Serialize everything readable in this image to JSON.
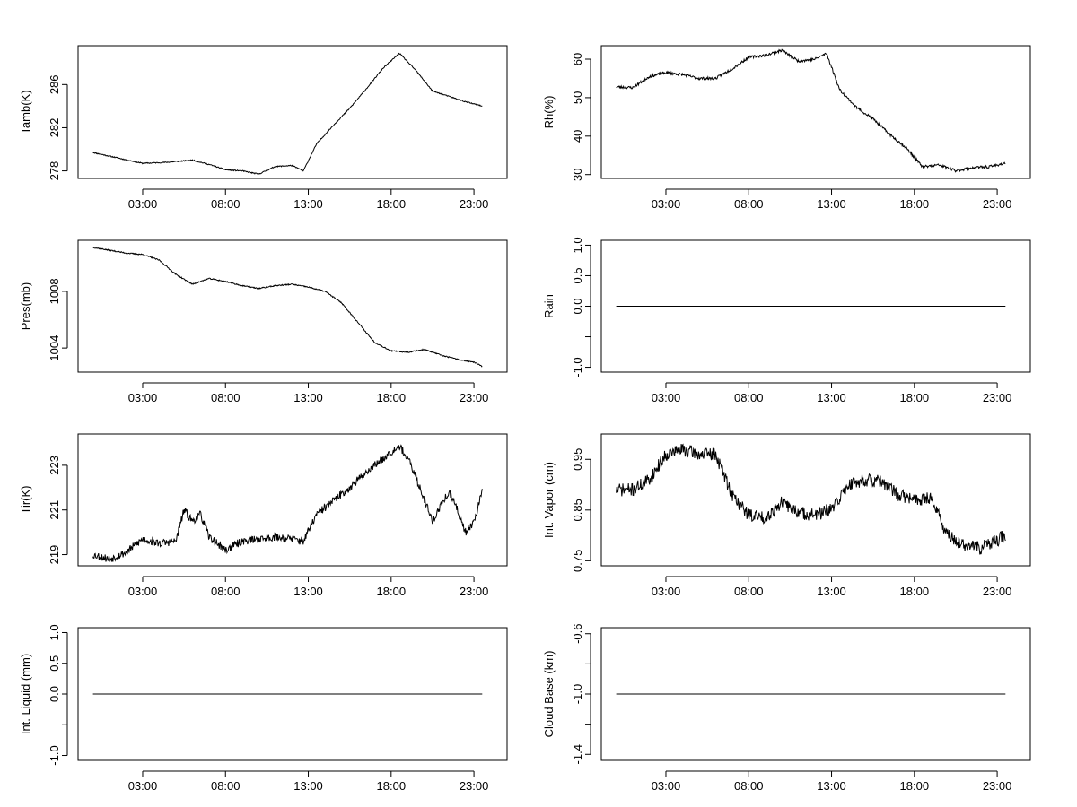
{
  "chart_data": [
    {
      "type": "line",
      "ylabel": "Tamb(K)",
      "xticks": [
        "03:00",
        "08:00",
        "13:00",
        "18:00",
        "23:00"
      ],
      "xtick_hours": [
        3,
        8,
        13,
        18,
        23
      ],
      "xlim": [
        -0.9,
        25
      ],
      "yticks": [
        278,
        282,
        286
      ],
      "ylim": [
        277.3,
        289.6
      ],
      "noise": 0.05,
      "seed": 11,
      "series": [
        {
          "name": "Tamb",
          "x": [
            0,
            1.5,
            3,
            4.5,
            6,
            7,
            8,
            9,
            10,
            11,
            12,
            12.7,
            13.5,
            14.5,
            15.5,
            16.5,
            17.5,
            18.5,
            19.5,
            20.5,
            21.5,
            22.5,
            23.5
          ],
          "y": [
            279.7,
            279.2,
            278.7,
            278.8,
            279.0,
            278.6,
            278.1,
            278.0,
            277.7,
            278.4,
            278.5,
            278.0,
            280.5,
            282.2,
            283.8,
            285.6,
            287.5,
            288.9,
            287.3,
            285.4,
            284.9,
            284.4,
            284.0
          ]
        }
      ]
    },
    {
      "type": "line",
      "ylabel": "Rh(%)",
      "xticks": [
        "03:00",
        "08:00",
        "13:00",
        "18:00",
        "23:00"
      ],
      "xtick_hours": [
        3,
        8,
        13,
        18,
        23
      ],
      "xlim": [
        -0.9,
        25
      ],
      "yticks": [
        30,
        40,
        50,
        60
      ],
      "ylim": [
        29,
        63.5
      ],
      "noise": 0.35,
      "seed": 23,
      "series": [
        {
          "name": "Rh",
          "x": [
            0,
            1,
            2,
            3,
            4,
            5,
            6,
            7,
            8,
            9,
            10,
            11,
            12,
            12.7,
            13.5,
            14.5,
            15.5,
            16.5,
            17.5,
            18.5,
            19.5,
            20.5,
            21.5,
            22.5,
            23.5
          ],
          "y": [
            52.8,
            52.6,
            55.5,
            56.5,
            56.0,
            55.0,
            55.0,
            57.5,
            60.5,
            61.0,
            62.3,
            59.5,
            60.0,
            61.5,
            52.0,
            47.5,
            44.5,
            40.5,
            37.0,
            32.0,
            32.5,
            31.0,
            31.8,
            32.0,
            33.0
          ]
        }
      ]
    },
    {
      "type": "line",
      "ylabel": "Pres(mb)",
      "xticks": [
        "03:00",
        "08:00",
        "13:00",
        "18:00",
        "23:00"
      ],
      "xtick_hours": [
        3,
        8,
        13,
        18,
        23
      ],
      "xlim": [
        -0.9,
        25
      ],
      "yticks": [
        1004,
        1008
      ],
      "ylim": [
        1002.3,
        1011.6
      ],
      "noise": 0.04,
      "seed": 37,
      "series": [
        {
          "name": "Pres",
          "x": [
            0,
            1,
            2,
            3,
            4,
            5,
            6,
            7,
            8,
            9,
            10,
            11,
            12,
            13,
            14,
            15,
            16,
            17,
            18,
            19,
            20,
            21,
            22,
            23,
            23.5
          ],
          "y": [
            1011.1,
            1010.9,
            1010.7,
            1010.6,
            1010.2,
            1009.2,
            1008.5,
            1008.9,
            1008.7,
            1008.4,
            1008.2,
            1008.4,
            1008.5,
            1008.3,
            1008.0,
            1007.2,
            1005.8,
            1004.4,
            1003.8,
            1003.7,
            1003.9,
            1003.5,
            1003.2,
            1003.0,
            1002.7
          ]
        }
      ]
    },
    {
      "type": "line",
      "ylabel": "Rain",
      "xticks": [
        "03:00",
        "08:00",
        "13:00",
        "18:00",
        "23:00"
      ],
      "xtick_hours": [
        3,
        8,
        13,
        18,
        23
      ],
      "xlim": [
        -0.9,
        25
      ],
      "yticks": [
        -1.0,
        -0.5,
        0.0,
        0.5,
        1.0
      ],
      "ytick_labels": [
        "-1.0",
        "",
        "0.0",
        "0.5",
        "1.0"
      ],
      "ylim": [
        -1.08,
        1.08
      ],
      "noise": 0,
      "seed": 1,
      "series": [
        {
          "name": "Rain",
          "x": [
            0,
            23.5
          ],
          "y": [
            0,
            0
          ]
        }
      ]
    },
    {
      "type": "line",
      "ylabel": "Tir(K)",
      "xticks": [
        "03:00",
        "08:00",
        "13:00",
        "18:00",
        "23:00"
      ],
      "xtick_hours": [
        3,
        8,
        13,
        18,
        23
      ],
      "xlim": [
        -0.9,
        25
      ],
      "yticks": [
        219,
        221,
        223
      ],
      "ylim": [
        218.5,
        224.4
      ],
      "noise": 0.18,
      "seed": 53,
      "series": [
        {
          "name": "Tir",
          "x": [
            0,
            1,
            2,
            3,
            4,
            5,
            5.5,
            6,
            6.5,
            7,
            8,
            9,
            10,
            11,
            12,
            12.7,
            13.5,
            14.5,
            15.5,
            16.5,
            17.5,
            18.5,
            19.2,
            20,
            20.5,
            21,
            21.5,
            22,
            22.5,
            23,
            23.5
          ],
          "y": [
            219.0,
            218.8,
            219.1,
            219.7,
            219.5,
            219.6,
            221.0,
            220.5,
            220.8,
            219.8,
            219.2,
            219.6,
            219.7,
            219.8,
            219.7,
            219.6,
            220.8,
            221.4,
            222.0,
            222.7,
            223.3,
            223.9,
            223.0,
            221.5,
            220.5,
            221.2,
            221.8,
            221.0,
            220.0,
            220.5,
            221.8
          ]
        }
      ]
    },
    {
      "type": "line",
      "ylabel": "Int. Vapor (cm)",
      "xticks": [
        "03:00",
        "08:00",
        "13:00",
        "18:00",
        "23:00"
      ],
      "xtick_hours": [
        3,
        8,
        13,
        18,
        23
      ],
      "xlim": [
        -0.9,
        25
      ],
      "yticks": [
        0.75,
        0.85,
        0.95
      ],
      "ylim": [
        0.74,
        1.0
      ],
      "noise": 0.013,
      "seed": 71,
      "series": [
        {
          "name": "Int. Vapor",
          "x": [
            0,
            1,
            2,
            3,
            4,
            5,
            6,
            7,
            8,
            9,
            10,
            11,
            12,
            13,
            14,
            15,
            16,
            17,
            18,
            19,
            20,
            21,
            22,
            23,
            23.5
          ],
          "y": [
            0.89,
            0.89,
            0.91,
            0.96,
            0.97,
            0.96,
            0.96,
            0.88,
            0.84,
            0.835,
            0.865,
            0.845,
            0.84,
            0.85,
            0.9,
            0.91,
            0.905,
            0.88,
            0.87,
            0.875,
            0.8,
            0.78,
            0.775,
            0.79,
            0.8
          ]
        }
      ]
    },
    {
      "type": "line",
      "ylabel": "Int. Liquid (mm)",
      "xticks": [
        "03:00",
        "08:00",
        "13:00",
        "18:00",
        "23:00"
      ],
      "xtick_hours": [
        3,
        8,
        13,
        18,
        23
      ],
      "xlim": [
        -0.9,
        25
      ],
      "yticks": [
        -1.0,
        -0.5,
        0.0,
        0.5,
        1.0
      ],
      "ytick_labels": [
        "-1.0",
        "",
        "0.0",
        "0.5",
        "1.0"
      ],
      "ylim": [
        -1.08,
        1.08
      ],
      "noise": 0,
      "seed": 1,
      "series": [
        {
          "name": "Int. Liquid",
          "x": [
            0,
            23.5
          ],
          "y": [
            0,
            0
          ]
        }
      ]
    },
    {
      "type": "line",
      "ylabel": "Cloud Base (km)",
      "xticks": [
        "03:00",
        "08:00",
        "13:00",
        "18:00",
        "23:00"
      ],
      "xtick_hours": [
        3,
        8,
        13,
        18,
        23
      ],
      "xlim": [
        -0.9,
        25
      ],
      "yticks": [
        -1.4,
        -1.2,
        -1.0,
        -0.8,
        -0.6
      ],
      "ytick_labels": [
        "-1.4",
        "",
        "-1.0",
        "",
        "-0.6"
      ],
      "ylim": [
        -1.44,
        -0.56
      ],
      "noise": 0,
      "seed": 1,
      "series": [
        {
          "name": "Cloud Base",
          "x": [
            0,
            23.5
          ],
          "y": [
            -1.0,
            -1.0
          ]
        }
      ]
    }
  ]
}
